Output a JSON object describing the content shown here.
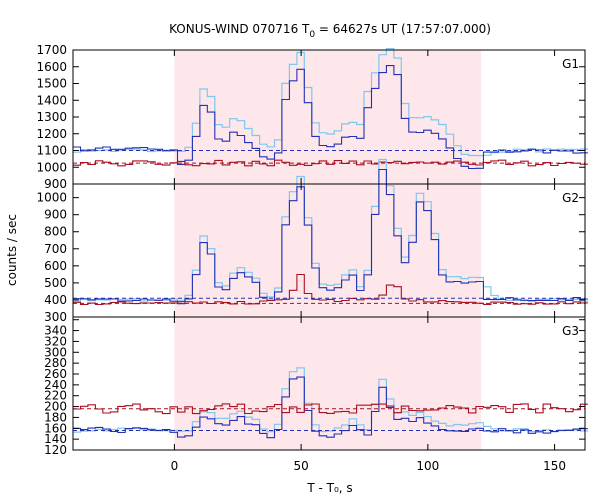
{
  "chart_data": {
    "type": "line",
    "title_parts": {
      "prefix": "KONUS-WIND 070716 T",
      "subscript": "0",
      "suffix": " = 64627s UT (17:57:07.000)"
    },
    "xlabel": "T - T₀, s",
    "ylabel": "counts / sec",
    "xlim": [
      -40,
      162
    ],
    "xticks": [
      0,
      50,
      100,
      150
    ],
    "shaded_interval": [
      0,
      121
    ],
    "bin_width": 2.944,
    "colors": {
      "shade": "#fde7ea",
      "count_line": "#7ec8ee",
      "blue_line": "#2130b5",
      "red_line": "#a81022",
      "pink_line": "#f07ad8",
      "frame": "#000000"
    },
    "panels": [
      {
        "label": "G1",
        "ylim": [
          900,
          1700
        ],
        "yticks": [
          900,
          1000,
          1100,
          1200,
          1300,
          1400,
          1500,
          1600,
          1700
        ],
        "background_levels": [
          {
            "color": "blue",
            "value": 1100
          },
          {
            "color": "red",
            "value": 1025
          }
        ],
        "pulses": [
          [
            10,
            11,
            2.5,
            320
          ],
          [
            14,
            22,
            3,
            100
          ],
          [
            25,
            28,
            4,
            120
          ],
          [
            44,
            48,
            2.2,
            520
          ],
          [
            51,
            52,
            2,
            170
          ],
          [
            58,
            63,
            4,
            100
          ],
          [
            68,
            69,
            2.2,
            130
          ],
          [
            76,
            78,
            2.5,
            380
          ],
          [
            83,
            85,
            2.5,
            450
          ],
          [
            88,
            103,
            5,
            200
          ],
          [
            106,
            118,
            3.5,
            -40
          ]
        ],
        "count_base": 1100,
        "count_noise": 10,
        "red_base": 1025,
        "red_noise": 18,
        "red_pulses": [],
        "blue_deviation": {
          "before": 1110,
          "during_scale": 0.95,
          "during_offset": -20,
          "after": 1095
        }
      },
      {
        "label": "G2",
        "ylim": [
          300,
          1080
        ],
        "yticks": [
          300,
          400,
          500,
          600,
          700,
          800,
          900,
          1000
        ],
        "background_levels": [
          {
            "color": "blue",
            "value": 410
          },
          {
            "color": "red",
            "value": 380
          }
        ],
        "pulses": [
          [
            10,
            11,
            2.5,
            350
          ],
          [
            14,
            22,
            3,
            50
          ],
          [
            25,
            28,
            3.5,
            160
          ],
          [
            44,
            48,
            2.2,
            620
          ],
          [
            51,
            52,
            2,
            220
          ],
          [
            55,
            63,
            4,
            80
          ],
          [
            68,
            69,
            2,
            150
          ],
          [
            78,
            80,
            2.2,
            490
          ],
          [
            82,
            84,
            2.2,
            380
          ],
          [
            86,
            95,
            3,
            220
          ],
          [
            96,
            99,
            2.5,
            420
          ],
          [
            104,
            118,
            3.5,
            130
          ]
        ],
        "count_base": 400,
        "count_noise": 8,
        "red_base": 380,
        "red_noise": 10,
        "red_pulses": [
          [
            48,
            48,
            2,
            150
          ],
          [
            85,
            85,
            2.5,
            100
          ],
          [
            60,
            75,
            20,
            20
          ]
        ],
        "blue_deviation": {
          "before": 400,
          "during_scale": 0.95,
          "during_offset": 0,
          "after": 405
        }
      },
      {
        "label": "G3",
        "ylim": [
          120,
          365
        ],
        "yticks": [
          120,
          140,
          160,
          180,
          200,
          220,
          240,
          260,
          280,
          300,
          320,
          340,
          360
        ],
        "background_levels": [
          {
            "color": "blue",
            "value": 156
          },
          {
            "color": "red",
            "value": 196
          }
        ],
        "pulses": [
          [
            10,
            11,
            2.2,
            25
          ],
          [
            14,
            22,
            3,
            15
          ],
          [
            25,
            28,
            3,
            25
          ],
          [
            44,
            48,
            2,
            105
          ],
          [
            51,
            52,
            2,
            20
          ],
          [
            68,
            69,
            2,
            20
          ],
          [
            80,
            81,
            2,
            85
          ],
          [
            86,
            96,
            3,
            30
          ],
          [
            104,
            118,
            3,
            10
          ]
        ],
        "count_base": 157,
        "count_noise": 4,
        "red_base": 196,
        "red_noise": 9,
        "red_pulses": [],
        "blue_deviation": {
          "before": 157,
          "during_scale": 0.95,
          "during_offset": -2,
          "after": 155
        }
      }
    ]
  }
}
